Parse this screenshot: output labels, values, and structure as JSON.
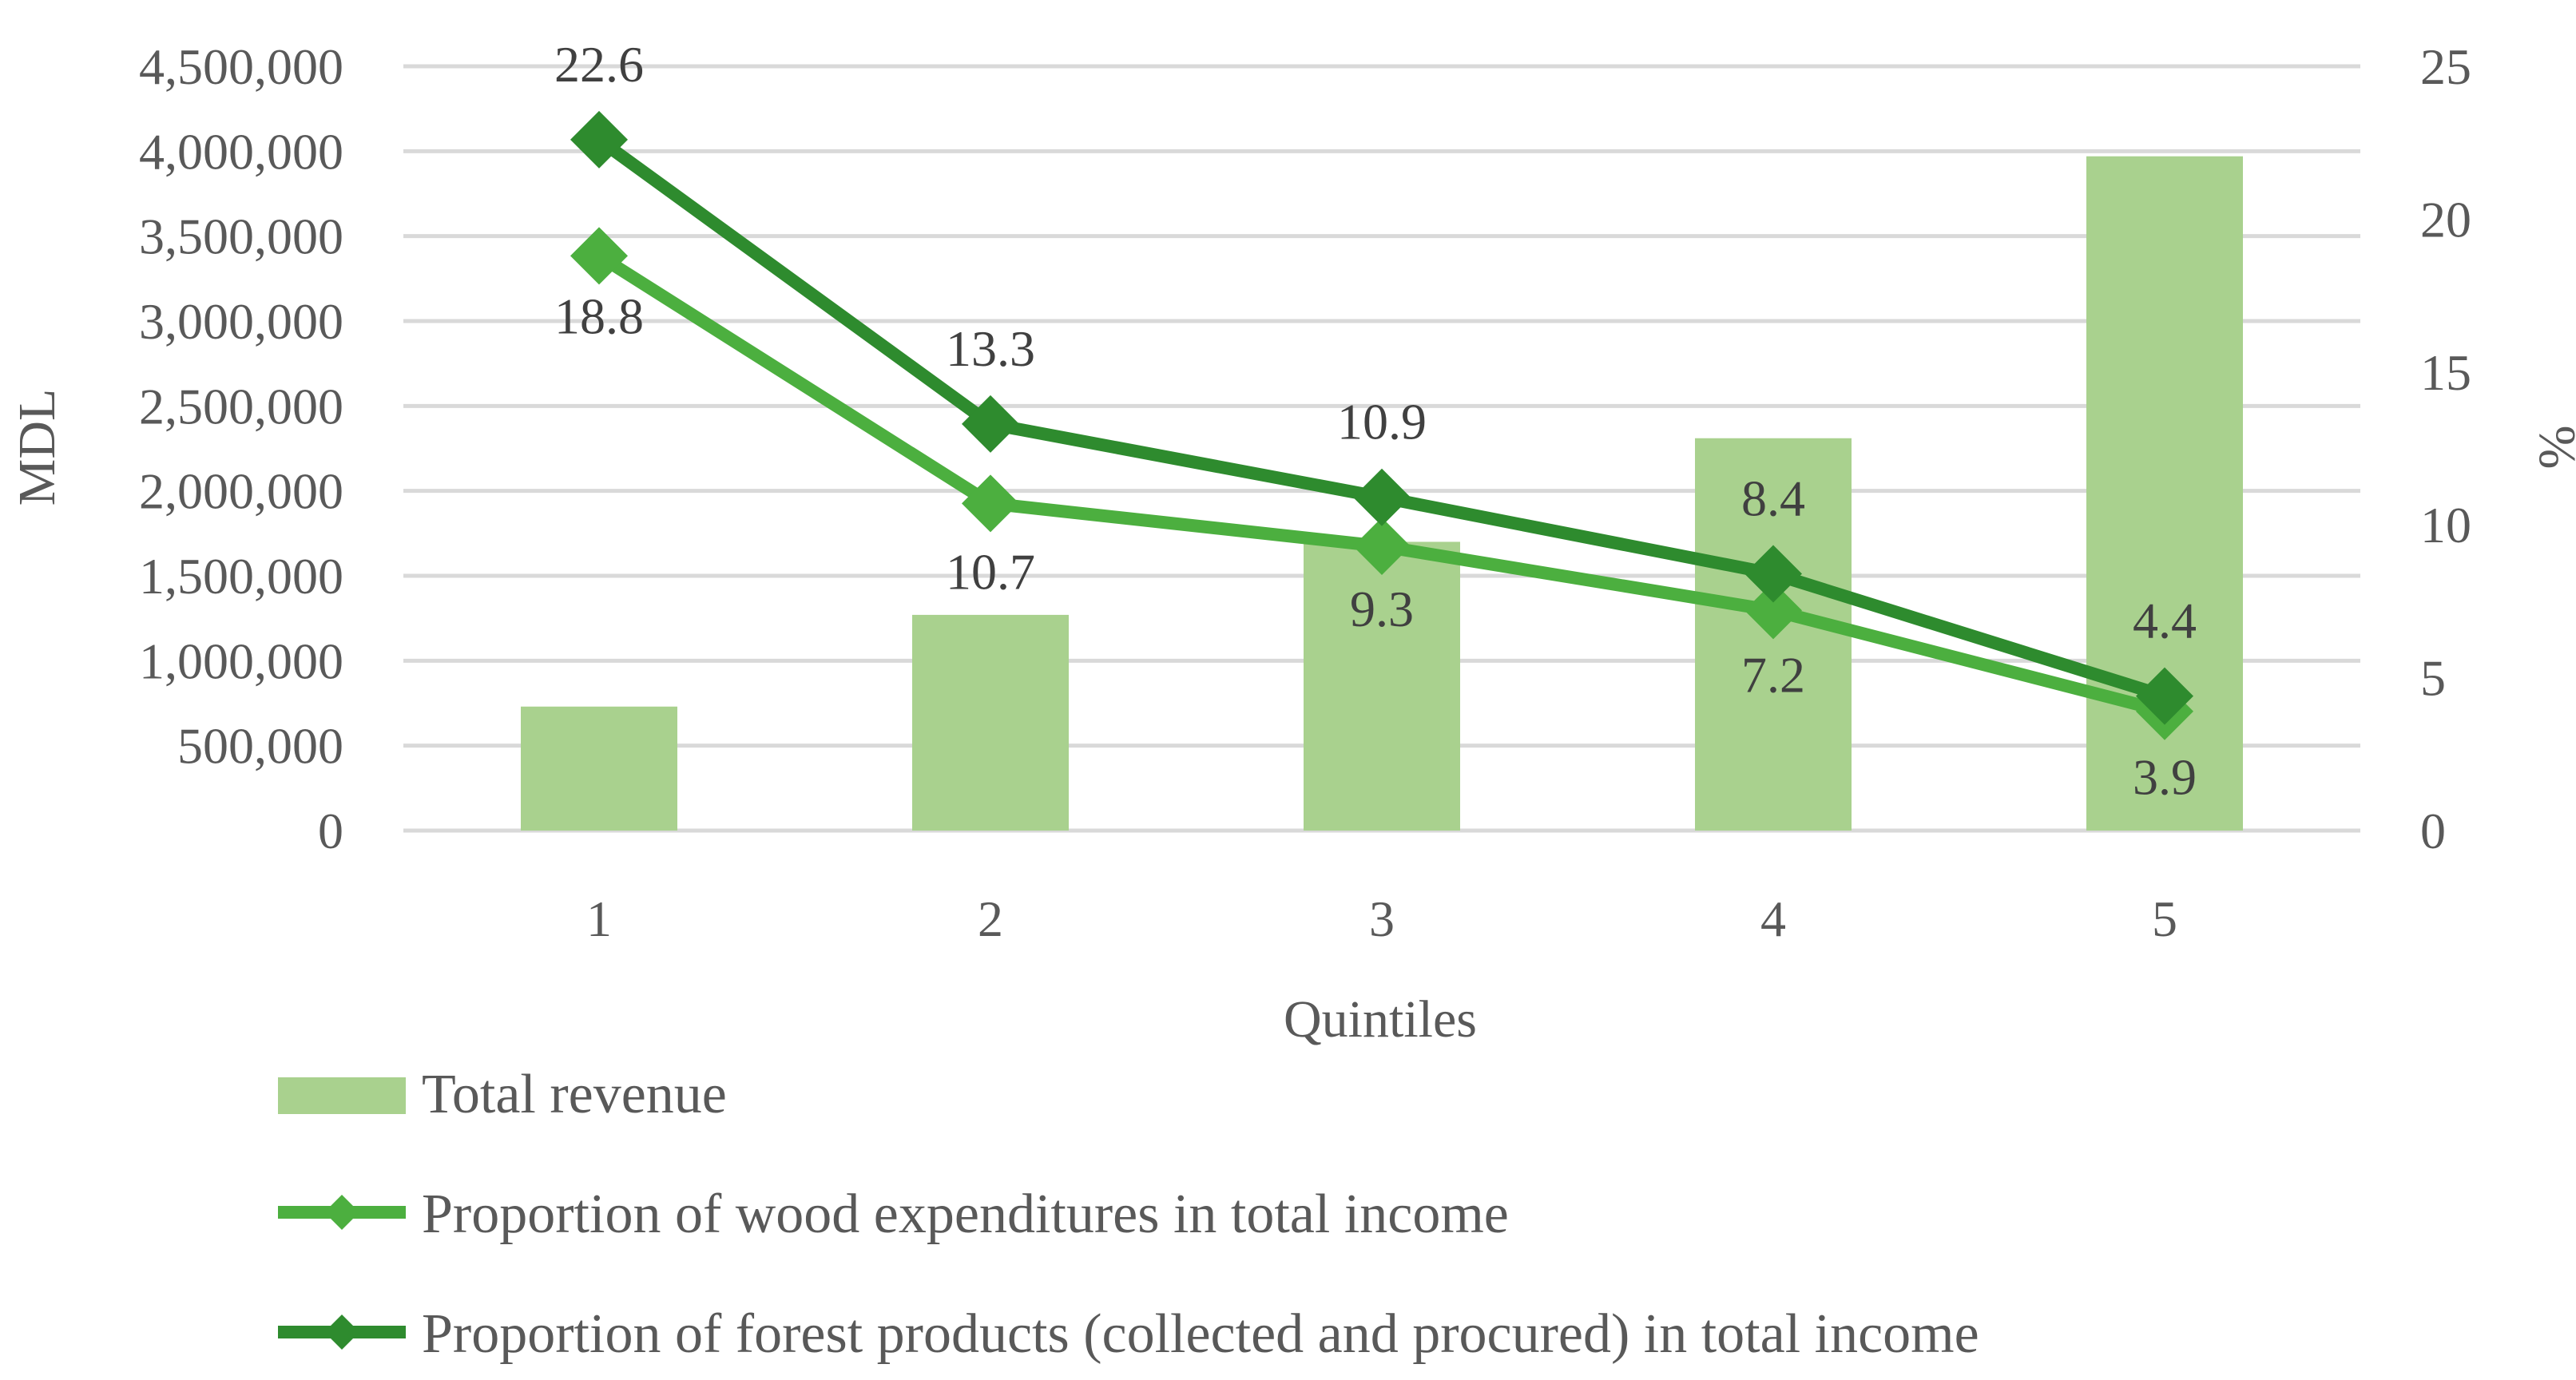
{
  "chart_data": {
    "type": "bar+line",
    "title": "",
    "xlabel": "Quintiles",
    "ylabel": "MDL",
    "y2label": "%",
    "categories": [
      "1",
      "2",
      "3",
      "4",
      "5"
    ],
    "ylim": [
      0,
      4500000
    ],
    "y2lim": [
      0,
      25
    ],
    "y_ticks": [
      0,
      500000,
      1000000,
      1500000,
      2000000,
      2500000,
      3000000,
      3500000,
      4000000,
      4500000
    ],
    "y_tick_labels": [
      "0",
      "500,000",
      "1,000,000",
      "1,500,000",
      "2,000,000",
      "2,500,000",
      "3,000,000",
      "3,500,000",
      "4,000,000",
      "4,500,000"
    ],
    "y2_ticks": [
      0,
      5,
      10,
      15,
      20,
      25
    ],
    "y2_tick_labels": [
      "0",
      "5",
      "10",
      "15",
      "20",
      "25"
    ],
    "grid": true,
    "legend_position": "bottom",
    "series": [
      {
        "name": "Total revenue",
        "type": "bar",
        "axis": "left",
        "color": "#a9d18e",
        "values": [
          730000,
          1270000,
          1700000,
          2310000,
          3970000
        ]
      },
      {
        "name": "Proportion of wood expenditures in total income",
        "type": "line",
        "axis": "right",
        "color": "#4caf3f",
        "values": [
          18.8,
          10.7,
          9.3,
          7.2,
          3.9
        ],
        "labels": [
          "18.8",
          "10.7",
          "9.3",
          "7.2",
          "3.9"
        ]
      },
      {
        "name": "Proportion of forest products (collected and procured) in total income",
        "type": "line",
        "axis": "right",
        "color": "#2e8b2e",
        "values": [
          22.6,
          13.3,
          10.9,
          8.4,
          4.4
        ],
        "labels": [
          "22.6",
          "13.3",
          "10.9",
          "8.4",
          "4.4"
        ]
      }
    ]
  }
}
